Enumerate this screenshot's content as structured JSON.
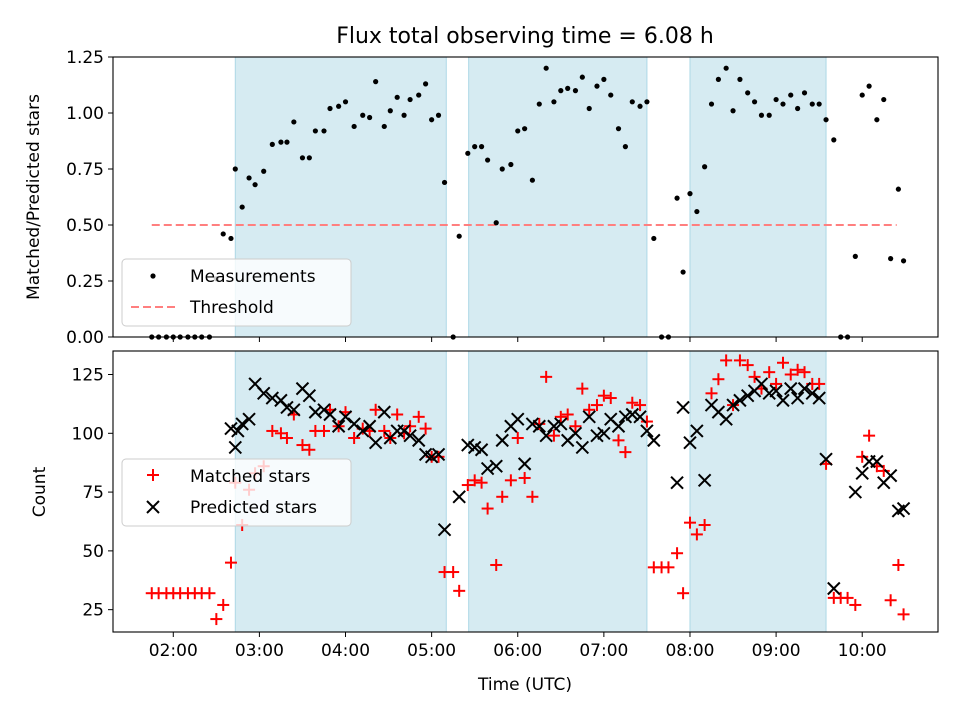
{
  "title": "Flux total observing time = 6.08 h",
  "colors": {
    "shade": "#add8e6",
    "matched": "#ff0000",
    "predicted": "#000000",
    "threshold": "#ff7f7f"
  },
  "chart_data": [
    {
      "id": "ratio",
      "type": "scatter",
      "ylabel": "Matched/Predicted stars",
      "ylim": [
        0,
        1.25
      ],
      "yticks": [
        0.0,
        0.25,
        0.5,
        0.75,
        1.0,
        1.25
      ],
      "ytick_labels": [
        "0.00",
        "0.25",
        "0.50",
        "0.75",
        "1.00",
        "1.25"
      ],
      "legend": {
        "position": "lower-left",
        "items": [
          "Measurements",
          "Threshold"
        ]
      },
      "threshold": {
        "value": 0.5,
        "x_start": 1.75,
        "x_end": 10.4
      },
      "measurements": [
        [
          1.75,
          0
        ],
        [
          1.83,
          0
        ],
        [
          1.92,
          0
        ],
        [
          2.0,
          0
        ],
        [
          2.08,
          0
        ],
        [
          2.17,
          0
        ],
        [
          2.25,
          0
        ],
        [
          2.33,
          0
        ],
        [
          2.42,
          0
        ],
        [
          2.5,
          0.26
        ],
        [
          2.58,
          0.46
        ],
        [
          2.67,
          0.44
        ],
        [
          2.72,
          0.75
        ],
        [
          2.8,
          0.58
        ],
        [
          2.88,
          0.71
        ],
        [
          2.95,
          0.68
        ],
        [
          3.05,
          0.74
        ],
        [
          3.15,
          0.86
        ],
        [
          3.25,
          0.87
        ],
        [
          3.32,
          0.87
        ],
        [
          3.4,
          0.96
        ],
        [
          3.5,
          0.8
        ],
        [
          3.58,
          0.8
        ],
        [
          3.65,
          0.92
        ],
        [
          3.75,
          0.92
        ],
        [
          3.82,
          1.02
        ],
        [
          3.92,
          1.03
        ],
        [
          4.0,
          1.05
        ],
        [
          4.1,
          0.94
        ],
        [
          4.2,
          0.99
        ],
        [
          4.28,
          0.98
        ],
        [
          4.35,
          1.14
        ],
        [
          4.45,
          0.94
        ],
        [
          4.52,
          1.01
        ],
        [
          4.6,
          1.07
        ],
        [
          4.68,
          0.99
        ],
        [
          4.75,
          1.06
        ],
        [
          4.85,
          1.08
        ],
        [
          4.93,
          1.13
        ],
        [
          5.0,
          0.97
        ],
        [
          5.08,
          0.99
        ],
        [
          5.15,
          0.69
        ],
        [
          5.25,
          0
        ],
        [
          5.32,
          0.45
        ],
        [
          5.42,
          0.82
        ],
        [
          5.5,
          0.85
        ],
        [
          5.58,
          0.85
        ],
        [
          5.65,
          0.79
        ],
        [
          5.75,
          0.51
        ],
        [
          5.82,
          0.75
        ],
        [
          5.92,
          0.77
        ],
        [
          6.0,
          0.92
        ],
        [
          6.08,
          0.93
        ],
        [
          6.17,
          0.7
        ],
        [
          6.25,
          1.04
        ],
        [
          6.33,
          1.2
        ],
        [
          6.42,
          1.05
        ],
        [
          6.5,
          1.1
        ],
        [
          6.58,
          1.11
        ],
        [
          6.67,
          1.1
        ],
        [
          6.75,
          1.16
        ],
        [
          6.83,
          1.02
        ],
        [
          6.92,
          1.12
        ],
        [
          7.0,
          1.15
        ],
        [
          7.08,
          1.08
        ],
        [
          7.17,
          0.93
        ],
        [
          7.25,
          0.85
        ],
        [
          7.33,
          1.05
        ],
        [
          7.42,
          1.03
        ],
        [
          7.5,
          1.05
        ],
        [
          7.58,
          0.44
        ],
        [
          7.67,
          0
        ],
        [
          7.75,
          0
        ],
        [
          7.85,
          0.62
        ],
        [
          7.92,
          0.29
        ],
        [
          8.0,
          0.64
        ],
        [
          8.08,
          0.56
        ],
        [
          8.17,
          0.76
        ],
        [
          8.25,
          1.04
        ],
        [
          8.33,
          1.15
        ],
        [
          8.42,
          1.2
        ],
        [
          8.5,
          1.01
        ],
        [
          8.58,
          1.15
        ],
        [
          8.67,
          1.09
        ],
        [
          8.75,
          1.05
        ],
        [
          8.83,
          0.99
        ],
        [
          8.92,
          0.99
        ],
        [
          9.0,
          1.06
        ],
        [
          9.08,
          1.04
        ],
        [
          9.17,
          1.08
        ],
        [
          9.25,
          1.02
        ],
        [
          9.33,
          1.09
        ],
        [
          9.42,
          1.04
        ],
        [
          9.5,
          1.04
        ],
        [
          9.58,
          0.97
        ],
        [
          9.67,
          0.88
        ],
        [
          9.75,
          0
        ],
        [
          9.83,
          0
        ],
        [
          9.92,
          0.36
        ],
        [
          10.0,
          1.08
        ],
        [
          10.08,
          1.12
        ],
        [
          10.17,
          0.97
        ],
        [
          10.25,
          1.06
        ],
        [
          10.33,
          0.35
        ],
        [
          10.42,
          0.66
        ],
        [
          10.48,
          0.34
        ]
      ]
    },
    {
      "id": "counts",
      "type": "scatter",
      "ylabel": "Count",
      "xlabel": "Time (UTC)",
      "ylim": [
        15.5,
        135
      ],
      "yticks": [
        25,
        50,
        75,
        100,
        125
      ],
      "ytick_labels": [
        "25",
        "50",
        "75",
        "100",
        "125"
      ],
      "xlim": [
        1.3,
        10.88
      ],
      "xticks": [
        2,
        3,
        4,
        5,
        6,
        7,
        8,
        9,
        10
      ],
      "xtick_labels": [
        "02:00",
        "03:00",
        "04:00",
        "05:00",
        "06:00",
        "07:00",
        "08:00",
        "09:00",
        "10:00"
      ],
      "legend": {
        "position": "center-left",
        "items": [
          "Matched stars",
          "Predicted stars"
        ]
      },
      "matched": [
        [
          1.75,
          32
        ],
        [
          1.83,
          32
        ],
        [
          1.92,
          32
        ],
        [
          2.0,
          32
        ],
        [
          2.08,
          32
        ],
        [
          2.17,
          32
        ],
        [
          2.25,
          32
        ],
        [
          2.33,
          32
        ],
        [
          2.42,
          32
        ],
        [
          2.5,
          21
        ],
        [
          2.58,
          27
        ],
        [
          2.67,
          45
        ],
        [
          2.72,
          79
        ],
        [
          2.8,
          61
        ],
        [
          2.88,
          76
        ],
        [
          2.95,
          83
        ],
        [
          3.05,
          86
        ],
        [
          3.15,
          101
        ],
        [
          3.25,
          100
        ],
        [
          3.32,
          98
        ],
        [
          3.4,
          108
        ],
        [
          3.5,
          95
        ],
        [
          3.58,
          93
        ],
        [
          3.65,
          101
        ],
        [
          3.75,
          101
        ],
        [
          3.82,
          110
        ],
        [
          3.92,
          103
        ],
        [
          4.0,
          109
        ],
        [
          4.1,
          98
        ],
        [
          4.2,
          102
        ],
        [
          4.28,
          101
        ],
        [
          4.35,
          110
        ],
        [
          4.45,
          101
        ],
        [
          4.52,
          98
        ],
        [
          4.6,
          108
        ],
        [
          4.68,
          100
        ],
        [
          4.75,
          103
        ],
        [
          4.85,
          107
        ],
        [
          4.93,
          102
        ],
        [
          5.0,
          90
        ],
        [
          5.08,
          90
        ],
        [
          5.15,
          41
        ],
        [
          5.25,
          41
        ],
        [
          5.32,
          33
        ],
        [
          5.42,
          78
        ],
        [
          5.5,
          80
        ],
        [
          5.58,
          79
        ],
        [
          5.65,
          68
        ],
        [
          5.75,
          44
        ],
        [
          5.82,
          73
        ],
        [
          5.92,
          80
        ],
        [
          6.0,
          98
        ],
        [
          6.08,
          81
        ],
        [
          6.17,
          73
        ],
        [
          6.25,
          104
        ],
        [
          6.33,
          124
        ],
        [
          6.42,
          99
        ],
        [
          6.5,
          107
        ],
        [
          6.58,
          108
        ],
        [
          6.67,
          103
        ],
        [
          6.75,
          119
        ],
        [
          6.83,
          110
        ],
        [
          6.92,
          112
        ],
        [
          7.0,
          116
        ],
        [
          7.08,
          115
        ],
        [
          7.17,
          97
        ],
        [
          7.25,
          92
        ],
        [
          7.33,
          113
        ],
        [
          7.42,
          112
        ],
        [
          7.5,
          105
        ],
        [
          7.58,
          43
        ],
        [
          7.67,
          43
        ],
        [
          7.75,
          43
        ],
        [
          7.85,
          49
        ],
        [
          7.92,
          32
        ],
        [
          8.0,
          62
        ],
        [
          8.08,
          57
        ],
        [
          8.17,
          61
        ],
        [
          8.25,
          117
        ],
        [
          8.33,
          123
        ],
        [
          8.42,
          131
        ],
        [
          8.5,
          112
        ],
        [
          8.58,
          131
        ],
        [
          8.67,
          129
        ],
        [
          8.75,
          124
        ],
        [
          8.83,
          119
        ],
        [
          8.92,
          126
        ],
        [
          9.0,
          121
        ],
        [
          9.08,
          130
        ],
        [
          9.17,
          125
        ],
        [
          9.25,
          127
        ],
        [
          9.33,
          126
        ],
        [
          9.42,
          121
        ],
        [
          9.5,
          121
        ],
        [
          9.58,
          87
        ],
        [
          9.67,
          30
        ],
        [
          9.75,
          30
        ],
        [
          9.83,
          30
        ],
        [
          9.92,
          27
        ],
        [
          10.0,
          90
        ],
        [
          10.08,
          99
        ],
        [
          10.17,
          86
        ],
        [
          10.25,
          84
        ],
        [
          10.33,
          29
        ],
        [
          10.42,
          44
        ],
        [
          10.48,
          23
        ]
      ],
      "predicted": [
        [
          2.72,
          94
        ],
        [
          2.67,
          102
        ],
        [
          2.75,
          101
        ],
        [
          2.8,
          104
        ],
        [
          2.88,
          106
        ],
        [
          2.95,
          121
        ],
        [
          3.05,
          117
        ],
        [
          3.15,
          115
        ],
        [
          3.25,
          114
        ],
        [
          3.32,
          111
        ],
        [
          3.4,
          110
        ],
        [
          3.5,
          119
        ],
        [
          3.58,
          116
        ],
        [
          3.65,
          109
        ],
        [
          3.75,
          110
        ],
        [
          3.82,
          108
        ],
        [
          3.92,
          103
        ],
        [
          4.0,
          107
        ],
        [
          4.1,
          104
        ],
        [
          4.2,
          101
        ],
        [
          4.28,
          103
        ],
        [
          4.35,
          96
        ],
        [
          4.45,
          109
        ],
        [
          4.52,
          98
        ],
        [
          4.6,
          101
        ],
        [
          4.68,
          101
        ],
        [
          4.75,
          99
        ],
        [
          4.85,
          97
        ],
        [
          4.93,
          91
        ],
        [
          5.0,
          90
        ],
        [
          5.08,
          91
        ],
        [
          5.15,
          59
        ],
        [
          5.32,
          73
        ],
        [
          5.42,
          95
        ],
        [
          5.5,
          94
        ],
        [
          5.58,
          93
        ],
        [
          5.65,
          85
        ],
        [
          5.75,
          86
        ],
        [
          5.82,
          97
        ],
        [
          5.92,
          103
        ],
        [
          6.0,
          106
        ],
        [
          6.08,
          87
        ],
        [
          6.17,
          104
        ],
        [
          6.25,
          103
        ],
        [
          6.33,
          99
        ],
        [
          6.42,
          103
        ],
        [
          6.5,
          104
        ],
        [
          6.58,
          97
        ],
        [
          6.67,
          100
        ],
        [
          6.75,
          94
        ],
        [
          6.83,
          107
        ],
        [
          6.92,
          99
        ],
        [
          7.0,
          100
        ],
        [
          7.08,
          106
        ],
        [
          7.17,
          103
        ],
        [
          7.25,
          107
        ],
        [
          7.33,
          108
        ],
        [
          7.42,
          107
        ],
        [
          7.5,
          101
        ],
        [
          7.58,
          97
        ],
        [
          7.85,
          79
        ],
        [
          7.92,
          111
        ],
        [
          8.0,
          96
        ],
        [
          8.08,
          101
        ],
        [
          8.17,
          80
        ],
        [
          8.25,
          112
        ],
        [
          8.33,
          109
        ],
        [
          8.42,
          106
        ],
        [
          8.5,
          112
        ],
        [
          8.58,
          114
        ],
        [
          8.67,
          116
        ],
        [
          8.75,
          118
        ],
        [
          8.83,
          121
        ],
        [
          8.92,
          117
        ],
        [
          9.0,
          118
        ],
        [
          9.08,
          114
        ],
        [
          9.17,
          119
        ],
        [
          9.25,
          115
        ],
        [
          9.33,
          119
        ],
        [
          9.42,
          117
        ],
        [
          9.5,
          115
        ],
        [
          9.58,
          89
        ],
        [
          9.67,
          34
        ],
        [
          9.92,
          75
        ],
        [
          10.0,
          83
        ],
        [
          10.08,
          88
        ],
        [
          10.17,
          88
        ],
        [
          10.25,
          79
        ],
        [
          10.33,
          82
        ],
        [
          10.42,
          67
        ],
        [
          10.48,
          68
        ]
      ]
    }
  ],
  "observing_windows": [
    [
      2.72,
      5.17
    ],
    [
      5.43,
      7.5
    ],
    [
      8.0,
      9.58
    ]
  ],
  "x_axis": {
    "xlim": [
      1.3,
      10.88
    ]
  }
}
